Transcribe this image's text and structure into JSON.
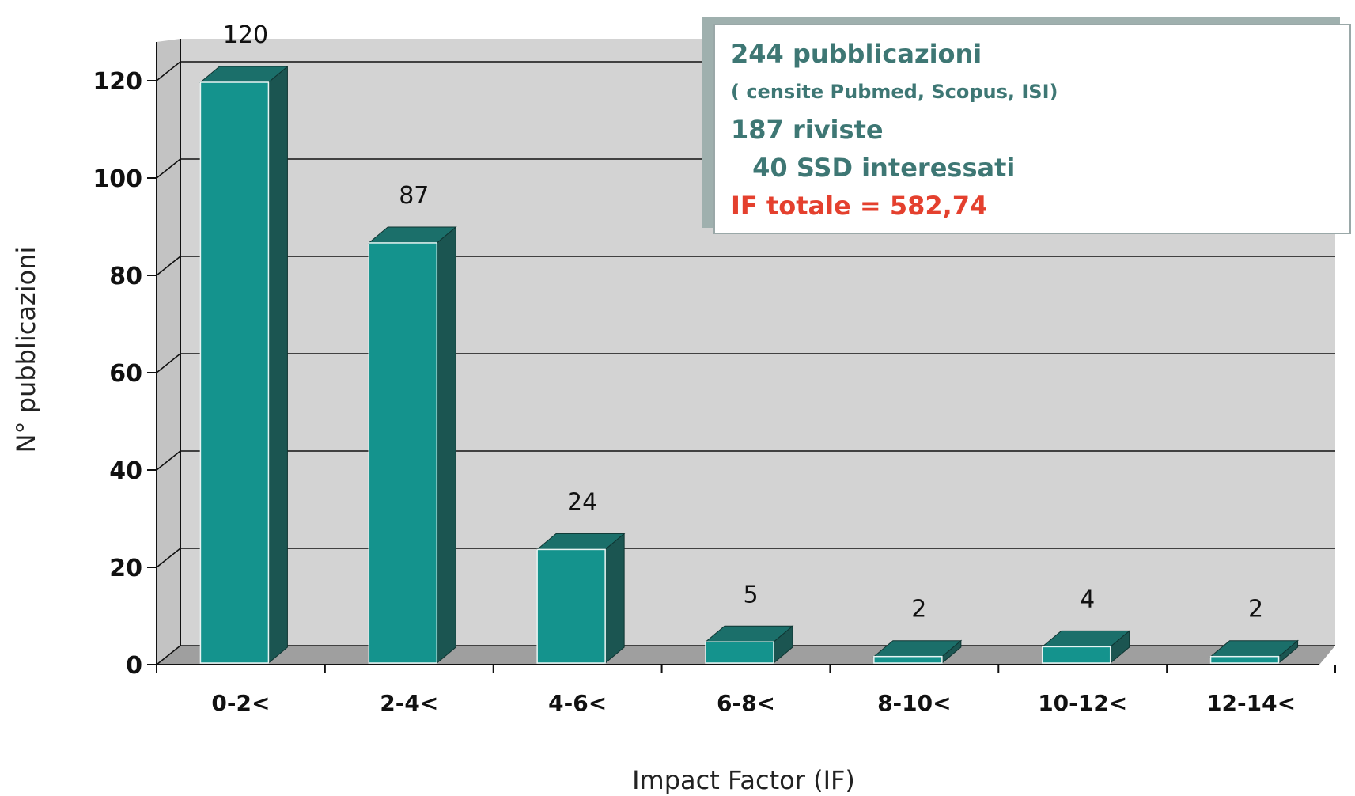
{
  "chart_data": {
    "type": "bar",
    "categories": [
      "0-2<",
      "2-4<",
      "4-6<",
      "6-8<",
      "8-10<",
      "10-12<",
      "12-14<"
    ],
    "values": [
      120,
      87,
      24,
      5,
      2,
      4,
      2
    ],
    "data_labels": [
      "120",
      "87",
      "24",
      "5",
      "2",
      "4",
      "2"
    ],
    "xlabel": "Impact Factor (IF)",
    "ylabel": "N° pubblicazioni",
    "ylim": [
      0,
      120
    ],
    "yticks": [
      "0",
      "20",
      "40",
      "60",
      "80",
      "100",
      "120"
    ],
    "grid": true,
    "style": "3d-column",
    "colors": {
      "bar_front": "#14938d",
      "bar_side": "#1b5551",
      "bar_top": "#1b6f6a",
      "plot_bg": "#d3d3d3"
    },
    "annotation": {
      "lines": [
        "244 pubblicazioni",
        "( censite Pubmed, Scopus, ISI)",
        "187 riviste",
        " 40 SSD interessati",
        "IF totale = 582,74"
      ],
      "colors": {
        "text": "#3e7774",
        "highlight": "#e4402e"
      }
    }
  }
}
